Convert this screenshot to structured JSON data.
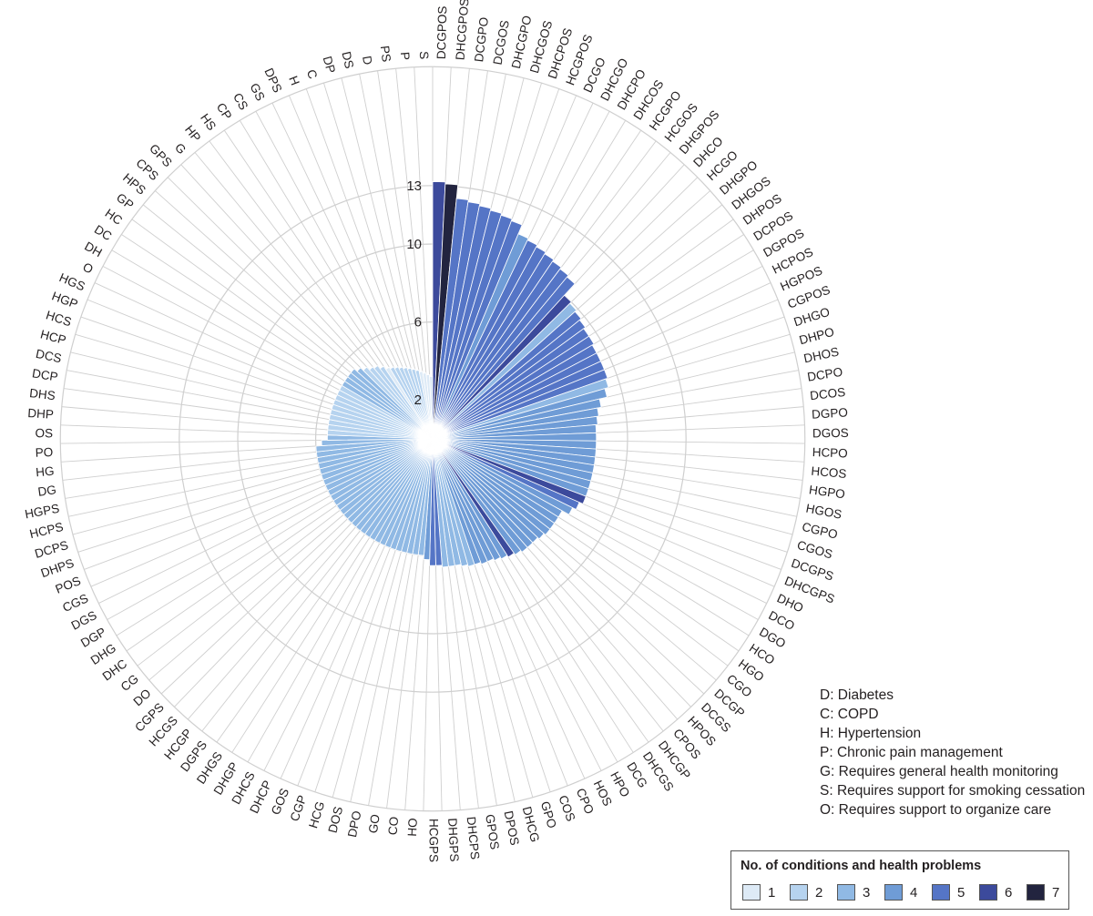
{
  "chart_data": {
    "type": "radial-bar",
    "categories": [
      "DCGPOS",
      "DHCGPOS",
      "DCGPO",
      "DCGOS",
      "DHCGPO",
      "DHCGOS",
      "DHCPOS",
      "HCGPOS",
      "DCGO",
      "DHCGO",
      "DHCPO",
      "DHCOS",
      "HCGPO",
      "HCGOS",
      "DHGPOS",
      "DHCO",
      "HCGO",
      "DHGPO",
      "DHGOS",
      "DHPOS",
      "DCPOS",
      "DGPOS",
      "HCPOS",
      "HGPOS",
      "CGPOS",
      "DHGO",
      "DHPO",
      "DHOS",
      "DCPO",
      "DCOS",
      "DGPO",
      "DGOS",
      "HCPO",
      "HCOS",
      "HGPO",
      "HGOS",
      "CGPO",
      "CGOS",
      "DCGPS",
      "DHCGPS",
      "DHO",
      "DCO",
      "DGO",
      "HCO",
      "HGO",
      "CGO",
      "DCGP",
      "DCGS",
      "HPOS",
      "CPOS",
      "DHCGP",
      "DHCGS",
      "DCG",
      "HPO",
      "HOS",
      "CPO",
      "COS",
      "GPO",
      "DHCG",
      "DPOS",
      "GPOS",
      "DHCPS",
      "DHGPS",
      "HCGPS",
      "HO",
      "CO",
      "GO",
      "DPO",
      "DOS",
      "HCG",
      "CGP",
      "GOS",
      "DHCP",
      "DHCS",
      "DHGP",
      "DHGS",
      "DGPS",
      "HCGP",
      "HCGS",
      "CGPS",
      "DO",
      "CG",
      "DHC",
      "DHG",
      "DGP",
      "DGS",
      "CGS",
      "POS",
      "DHPS",
      "DCPS",
      "HCPS",
      "HGPS",
      "DG",
      "HG",
      "PO",
      "OS",
      "DHP",
      "DHS",
      "DCP",
      "DCS",
      "HCP",
      "HCS",
      "HGP",
      "HGS",
      "O",
      "DH",
      "DC",
      "HC",
      "GP",
      "HPS",
      "CPS",
      "GPS",
      "G",
      "HP",
      "HS",
      "CP",
      "CS",
      "GS",
      "DPS",
      "H",
      "C",
      "DP",
      "DS",
      "D",
      "PS",
      "P",
      "S"
    ],
    "values": [
      13.2,
      13.1,
      12.4,
      12.3,
      12.2,
      12.1,
      12.0,
      11.9,
      11.4,
      11.3,
      11.2,
      11.1,
      11.0,
      10.9,
      10.8,
      10.0,
      9.9,
      9.8,
      9.7,
      9.6,
      9.6,
      9.5,
      9.5,
      9.5,
      9.5,
      9.4,
      9.2,
      8.8,
      8.6,
      8.5,
      8.4,
      8.4,
      8.4,
      8.4,
      8.4,
      8.4,
      8.4,
      8.4,
      8.4,
      8.4,
      8.2,
      8.0,
      7.6,
      7.6,
      7.6,
      7.6,
      7.5,
      7.4,
      7.4,
      7.4,
      7.3,
      7.2,
      7.1,
      7.0,
      6.9,
      6.9,
      6.8,
      6.8,
      6.7,
      6.6,
      6.6,
      6.6,
      6.5,
      6.5,
      6.2,
      6.0,
      6.0,
      6.0,
      6.0,
      6.0,
      6.0,
      6.0,
      6.0,
      6.0,
      6.0,
      6.0,
      6.0,
      6.0,
      6.0,
      6.0,
      6.0,
      6.0,
      6.0,
      6.0,
      6.0,
      6.0,
      6.0,
      6.0,
      6.0,
      6.0,
      6.0,
      6.0,
      6.0,
      6.0,
      5.7,
      5.4,
      5.4,
      5.4,
      5.4,
      5.4,
      5.4,
      5.4,
      5.4,
      5.4,
      5.4,
      5.4,
      5.4,
      5.4,
      5.4,
      5.4,
      5.2,
      5.0,
      4.8,
      4.7,
      4.5,
      4.3,
      4.2,
      4.1,
      4.0,
      3.9,
      3.8,
      3.7,
      3.6,
      3.5,
      3.4,
      3.3,
      3.2
    ],
    "levels": [
      6,
      7,
      5,
      5,
      5,
      5,
      5,
      5,
      4,
      5,
      5,
      5,
      5,
      5,
      5,
      6,
      3,
      5,
      5,
      5,
      5,
      5,
      5,
      5,
      5,
      3,
      4,
      4,
      4,
      4,
      4,
      4,
      4,
      4,
      4,
      4,
      4,
      4,
      4,
      6,
      5,
      4,
      4,
      4,
      4,
      4,
      4,
      4,
      4,
      4,
      4,
      6,
      4,
      4,
      4,
      4,
      4,
      3,
      3,
      3,
      3,
      3,
      5,
      5,
      4,
      3,
      3,
      3,
      3,
      3,
      3,
      3,
      3,
      3,
      3,
      3,
      3,
      3,
      3,
      3,
      3,
      3,
      3,
      3,
      3,
      3,
      3,
      3,
      3,
      3,
      3,
      3,
      3,
      3,
      3,
      3,
      2,
      2,
      2,
      2,
      2,
      2,
      2,
      2,
      2,
      2,
      3,
      3,
      3,
      3,
      3,
      2,
      2,
      2,
      2,
      1,
      2,
      2,
      2,
      2,
      2,
      2,
      2,
      1,
      1,
      1,
      1,
      1,
      1
    ],
    "rmax": 14,
    "tick_values": [
      2,
      6,
      10,
      13
    ],
    "tick_labels": [
      "2",
      "6",
      "10",
      "13"
    ],
    "grid": true
  },
  "colors": {
    "level_1": "#ddeaf6",
    "level_2": "#b6d3ef",
    "level_3": "#90b9e4",
    "level_4": "#6f9cd6",
    "level_5": "#5575c6",
    "level_6": "#3c4a9c",
    "level_7": "#22243f",
    "grid": "#cfcfcf"
  },
  "abbreviations": [
    "D: Diabetes",
    "C: COPD",
    "H: Hypertension",
    "P: Chronic pain management",
    "G: Requires general health monitoring",
    "S: Requires support for smoking cessation",
    "O: Requires support to organize care"
  ],
  "legend": {
    "title": "No. of conditions and health problems",
    "items": [
      "1",
      "2",
      "3",
      "4",
      "5",
      "6",
      "7"
    ]
  }
}
